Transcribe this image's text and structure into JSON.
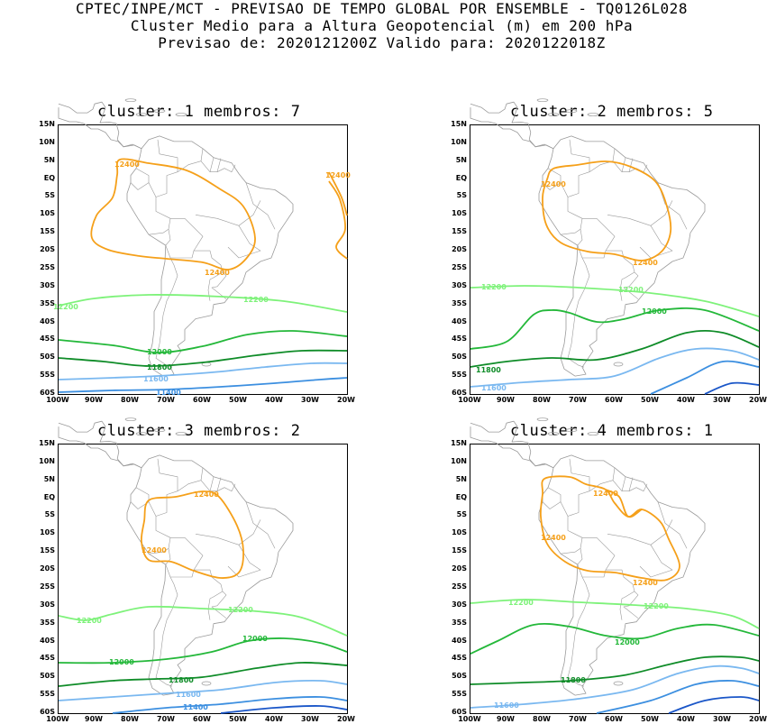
{
  "header": {
    "line1": "CPTEC/INPE/MCT - PREVISAO DE TEMPO GLOBAL POR ENSEMBLE - TQ0126L028",
    "line2": "Cluster Medio para a Altura Geopotencial (m) em 200 hPa",
    "line3": "Previsao de: 2020121200Z   Valido para: 2020122018Z"
  },
  "axes": {
    "lat_labels": [
      "15N",
      "10N",
      "5N",
      "EQ",
      "5S",
      "10S",
      "15S",
      "20S",
      "25S",
      "30S",
      "35S",
      "40S",
      "45S",
      "50S",
      "55S",
      "60S"
    ],
    "lon_labels": [
      "100W",
      "90W",
      "80W",
      "70W",
      "60W",
      "50W",
      "40W",
      "30W",
      "20W"
    ]
  },
  "colors": {
    "c12400": "#f5a01a",
    "c12200": "#7ef27a",
    "c12000": "#24b83a",
    "c11800": "#0f8c28",
    "c11600": "#7ab8f0",
    "c11400": "#3c8fe0",
    "c11200": "#1a56c8",
    "coast": "#9a9a9a"
  },
  "panels": [
    {
      "title": "cluster: 1  membros: 7",
      "labels": {
        "a": "12400",
        "b": "12400",
        "c": "12400",
        "d": "12200",
        "e": "12200",
        "f": "12000",
        "g": "11800",
        "h": "11600",
        "i": "11400"
      }
    },
    {
      "title": "cluster: 2  membros: 5",
      "labels": {
        "a": "12400",
        "b": "12400",
        "d": "12200",
        "e": "12200",
        "f": "12000",
        "g": "11800",
        "h": "11600"
      }
    },
    {
      "title": "cluster: 3  membros: 2",
      "labels": {
        "a": "12400",
        "b": "12400",
        "d": "12200",
        "e": "12200",
        "f": "12000",
        "f2": "12000",
        "g": "11800",
        "h": "11600",
        "i": "11400"
      }
    },
    {
      "title": "cluster: 4  membros: 1",
      "labels": {
        "a": "12400",
        "b": "12400",
        "c": "12400",
        "d": "12200",
        "e": "12200",
        "f": "12000",
        "g": "11800",
        "h": "11600"
      }
    }
  ]
}
